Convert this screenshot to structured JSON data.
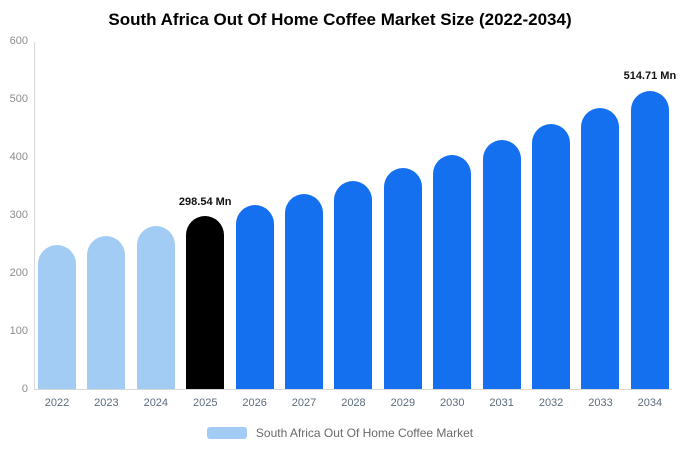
{
  "chart_data": {
    "type": "bar",
    "title": "South Africa Out Of Home Coffee Market Size (2022-2034)",
    "unit": "Mn",
    "categories": [
      "2022",
      "2023",
      "2024",
      "2025",
      "2026",
      "2027",
      "2028",
      "2029",
      "2030",
      "2031",
      "2032",
      "2033",
      "2034"
    ],
    "values": [
      249.0,
      264.6,
      281.1,
      298.54,
      317.2,
      337.0,
      358.1,
      380.4,
      404.2,
      429.4,
      456.2,
      484.7,
      514.71
    ],
    "groups": [
      "past",
      "past",
      "past",
      "highlight",
      "forecast",
      "forecast",
      "forecast",
      "forecast",
      "forecast",
      "forecast",
      "forecast",
      "forecast",
      "forecast"
    ],
    "colors": {
      "past": "#A3CCF5",
      "highlight": "#000000",
      "forecast": "#1570F0"
    },
    "annotations": [
      {
        "index": 3,
        "label": "298.54 Mn"
      },
      {
        "index": 12,
        "label": "514.71 Mn"
      }
    ],
    "xlabel": "",
    "ylabel": "",
    "ylim": [
      0,
      600
    ],
    "yticks": [
      0,
      100,
      200,
      300,
      400,
      500,
      600
    ],
    "grid": false,
    "legend_position": "bottom",
    "legend": {
      "label": "South Africa Out Of Home Coffee Market",
      "swatch_color": "#A3CCF5"
    }
  }
}
